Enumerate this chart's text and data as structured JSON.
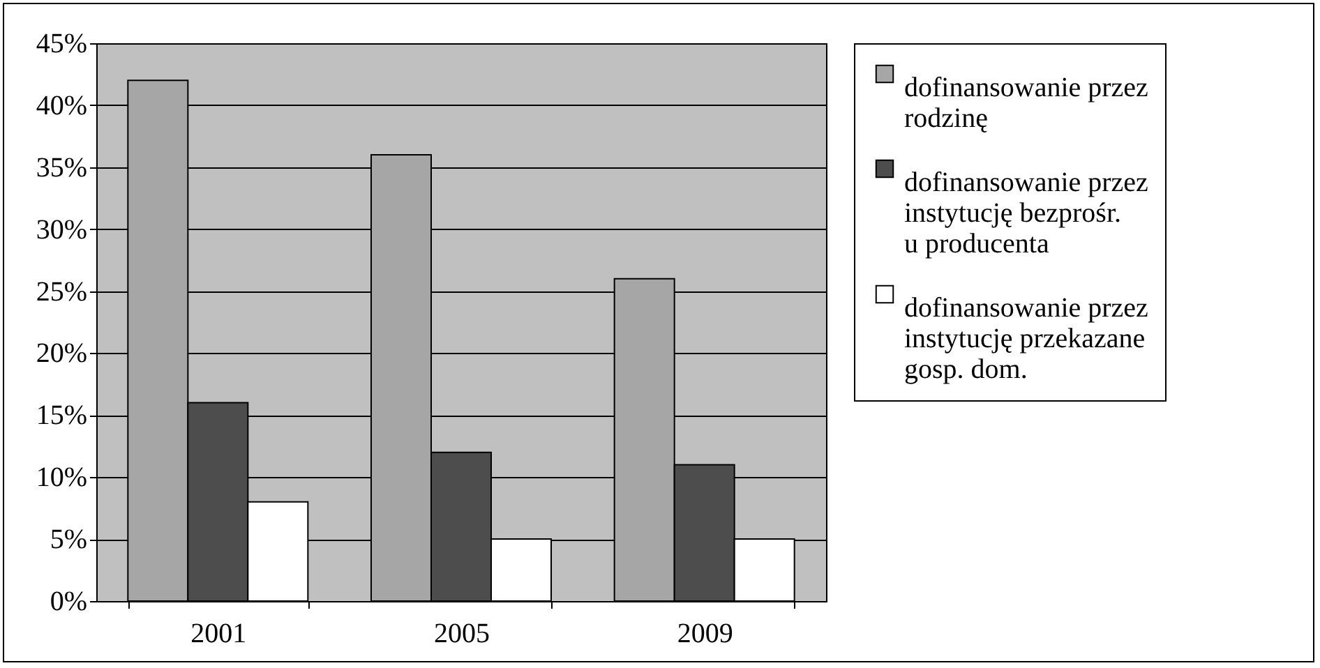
{
  "chart_data": {
    "type": "bar",
    "categories": [
      "2001",
      "2005",
      "2009"
    ],
    "series": [
      {
        "name": "dofinansowanie przez rodzinę",
        "color": "#a6a6a6",
        "values": [
          42,
          36,
          26
        ]
      },
      {
        "name": "dofinansowanie przez instytucję bezprośr. u producenta",
        "color": "#4d4d4d",
        "values": [
          16,
          12,
          11
        ]
      },
      {
        "name": "dofinansowanie przez instytucję przekazane gosp. dom.",
        "color": "#ffffff",
        "values": [
          8,
          5,
          5
        ]
      }
    ],
    "ylim": [
      0,
      45
    ],
    "yticks": [
      {
        "value": 0,
        "label": "0%"
      },
      {
        "value": 5,
        "label": "5%"
      },
      {
        "value": 10,
        "label": "10%"
      },
      {
        "value": 15,
        "label": "15%"
      },
      {
        "value": 20,
        "label": "20%"
      },
      {
        "value": 25,
        "label": "25%"
      },
      {
        "value": 30,
        "label": "30%"
      },
      {
        "value": 35,
        "label": "35%"
      },
      {
        "value": 40,
        "label": "40%"
      },
      {
        "value": 45,
        "label": "45%"
      }
    ],
    "grid": "y",
    "legend": "right"
  }
}
